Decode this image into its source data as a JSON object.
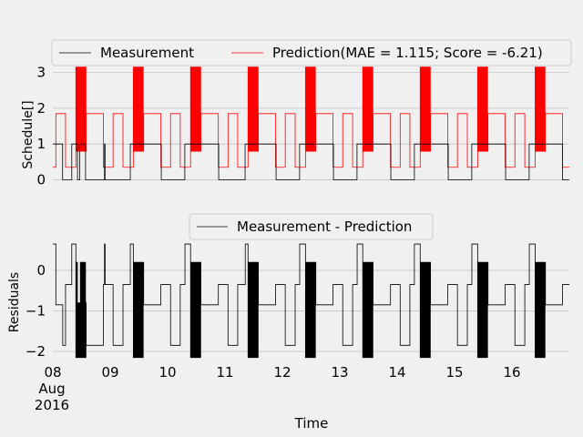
{
  "chart_data": [
    {
      "type": "line",
      "ylabel": "Schedule[]",
      "ylim": [
        -0.15,
        3.25
      ],
      "yticks": [
        "0",
        "1",
        "2",
        "3"
      ],
      "xlim_days": [
        8,
        17
      ],
      "grid": true,
      "legend_placement": "top",
      "legend_columns": 2,
      "series": [
        {
          "name": "Measurement",
          "color": "#000000",
          "description_levels": [
            0,
            1
          ],
          "on_intervals_days": [
            [
              8.0,
              8.17
            ],
            [
              8.33,
              8.43
            ],
            [
              8.47,
              8.57
            ],
            [
              8.9,
              8.91
            ],
            [
              9.35,
              9.88
            ],
            [
              10.3,
              10.88
            ],
            [
              11.35,
              11.88
            ],
            [
              12.3,
              12.88
            ],
            [
              13.3,
              13.88
            ],
            [
              14.3,
              14.88
            ],
            [
              15.3,
              15.88
            ],
            [
              16.3,
              16.88
            ]
          ]
        },
        {
          "name": "Prediction(MAE = 1.115; Score = -6.21)",
          "color": "#ff0000",
          "levels": [
            0.35,
            0.8,
            1.85,
            3.15
          ]
        }
      ]
    },
    {
      "type": "line",
      "xlabel": "Time",
      "ylabel": "Residuals",
      "ylim": [
        -2.25,
        0.7
      ],
      "yticks": [
        "−2",
        "−1",
        "0"
      ],
      "xticks": [
        "08",
        "09",
        "10",
        "11",
        "12",
        "13",
        "14",
        "15",
        "16"
      ],
      "xtick_sublabels": [
        "Aug",
        "2016"
      ],
      "grid": true,
      "legend_placement": "top",
      "series": [
        {
          "name": "Measurement - Prediction",
          "color": "#000000",
          "levels": [
            -2.15,
            -1.85,
            -0.85,
            -0.35,
            0.2,
            0.65
          ]
        }
      ]
    }
  ],
  "axis_labels": {
    "top_ylabel": "Schedule[]",
    "bottom_ylabel": "Residuals",
    "xlabel": "Time"
  },
  "legends": {
    "measurement": "Measurement",
    "prediction": "Prediction(MAE = 1.115; Score = -6.21)",
    "residual": "Measurement - Prediction"
  },
  "ticks": {
    "top_y": [
      "0",
      "1",
      "2",
      "3"
    ],
    "bottom_y": [
      "−2",
      "−1",
      "0"
    ],
    "x": [
      "08",
      "09",
      "10",
      "11",
      "12",
      "13",
      "14",
      "15",
      "16"
    ],
    "x_month": "Aug",
    "x_year": "2016"
  },
  "colors": {
    "background": "#f0f0f0",
    "grid": "#cbcbcb",
    "measurement": "#000000",
    "prediction": "#ff0000",
    "residual": "#000000"
  }
}
